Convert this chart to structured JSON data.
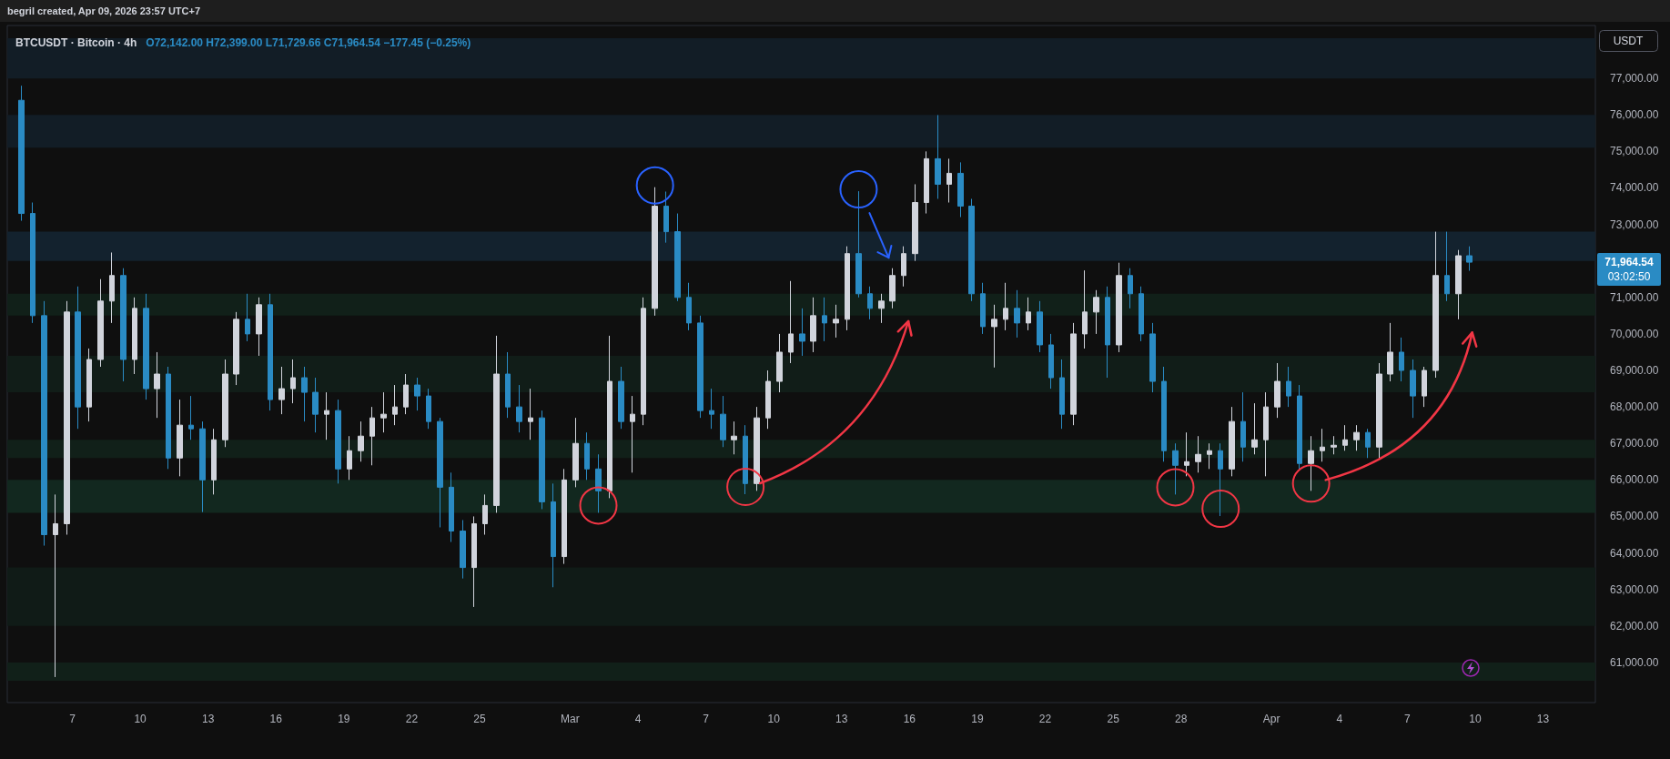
{
  "chart_data": {
    "type": "candlestick",
    "title": "BTCUSDT · Bitcoin · 4h",
    "subtitle": "O72,142.00 H72,399.00 L71,729.66 C71,964.54 −177.45 (−0.25%)",
    "annotations": [
      "begril created, Apr 09, 2026 23:57 UTC+7",
      "USDT",
      "71,964.54",
      "03:02:50"
    ],
    "x": [
      "2026-02-04T18:00",
      "2026-02-05T06:00",
      "2026-02-05T18:00",
      "2026-02-06T06:00",
      "2026-02-06T18:00",
      "2026-02-07T06:00",
      "2026-02-07T18:00",
      "2026-02-08T06:00",
      "2026-02-08T18:00",
      "2026-02-09T06:00",
      "2026-02-09T18:00",
      "2026-02-10T06:00",
      "2026-02-10T18:00",
      "2026-02-11T06:00",
      "2026-02-11T18:00",
      "2026-02-12T06:00",
      "2026-02-12T18:00",
      "2026-02-13T06:00",
      "2026-02-13T18:00",
      "2026-02-14T06:00",
      "2026-02-14T18:00",
      "2026-02-15T06:00",
      "2026-02-15T18:00",
      "2026-02-16T06:00",
      "2026-02-16T18:00",
      "2026-02-17T06:00",
      "2026-02-17T18:00",
      "2026-02-18T06:00",
      "2026-02-18T18:00",
      "2026-02-19T06:00",
      "2026-02-19T18:00",
      "2026-02-20T06:00",
      "2026-02-20T18:00",
      "2026-02-21T06:00",
      "2026-02-21T18:00",
      "2026-02-22T06:00",
      "2026-02-22T18:00",
      "2026-02-23T06:00",
      "2026-02-23T18:00",
      "2026-02-24T06:00",
      "2026-02-24T18:00",
      "2026-02-25T06:00",
      "2026-02-25T18:00",
      "2026-02-26T06:00",
      "2026-02-26T18:00",
      "2026-02-27T06:00",
      "2026-02-27T18:00",
      "2026-02-28T06:00",
      "2026-02-28T18:00",
      "2026-03-01T06:00",
      "2026-03-01T18:00",
      "2026-03-02T06:00",
      "2026-03-02T18:00",
      "2026-03-03T06:00",
      "2026-03-03T18:00",
      "2026-03-04T06:00",
      "2026-03-04T18:00",
      "2026-03-05T06:00",
      "2026-03-05T18:00",
      "2026-03-06T06:00",
      "2026-03-06T18:00",
      "2026-03-07T06:00",
      "2026-03-07T18:00",
      "2026-03-08T06:00",
      "2026-03-08T18:00",
      "2026-03-09T06:00",
      "2026-03-09T18:00",
      "2026-03-10T06:00",
      "2026-03-10T18:00",
      "2026-03-11T06:00",
      "2026-03-11T18:00",
      "2026-03-12T06:00",
      "2026-03-12T18:00",
      "2026-03-13T06:00",
      "2026-03-13T18:00",
      "2026-03-14T06:00",
      "2026-03-14T18:00",
      "2026-03-15T06:00",
      "2026-03-15T18:00",
      "2026-03-16T06:00",
      "2026-03-16T18:00",
      "2026-03-17T06:00",
      "2026-03-17T18:00",
      "2026-03-18T06:00",
      "2026-03-18T18:00",
      "2026-03-19T06:00",
      "2026-03-19T18:00",
      "2026-03-20T06:00",
      "2026-03-20T18:00",
      "2026-03-21T06:00",
      "2026-03-21T18:00",
      "2026-03-22T06:00",
      "2026-03-22T18:00",
      "2026-03-23T06:00",
      "2026-03-23T18:00",
      "2026-03-24T06:00",
      "2026-03-24T18:00",
      "2026-03-25T06:00",
      "2026-03-25T18:00",
      "2026-03-26T06:00",
      "2026-03-26T18:00",
      "2026-03-27T06:00",
      "2026-03-27T18:00",
      "2026-03-28T06:00",
      "2026-03-28T18:00",
      "2026-03-29T06:00",
      "2026-03-29T18:00",
      "2026-03-30T06:00",
      "2026-03-30T18:00",
      "2026-03-31T06:00",
      "2026-03-31T18:00",
      "2026-04-01T06:00",
      "2026-04-01T18:00",
      "2026-04-02T06:00",
      "2026-04-02T18:00",
      "2026-04-03T06:00",
      "2026-04-03T18:00",
      "2026-04-04T06:00",
      "2026-04-04T18:00",
      "2026-04-05T06:00",
      "2026-04-05T18:00",
      "2026-04-06T06:00",
      "2026-04-06T18:00",
      "2026-04-07T06:00",
      "2026-04-07T18:00",
      "2026-04-08T06:00",
      "2026-04-08T18:00",
      "2026-04-09T06:00",
      "2026-04-09T18:00"
    ],
    "ohlc": [
      [
        76400,
        76800,
        73100,
        73300
      ],
      [
        73300,
        73600,
        70300,
        70500
      ],
      [
        70500,
        70900,
        64200,
        64500
      ],
      [
        64500,
        65600,
        60600,
        64800
      ],
      [
        64800,
        70900,
        64500,
        70600
      ],
      [
        70600,
        71300,
        67400,
        68000
      ],
      [
        68000,
        69600,
        67600,
        69300
      ],
      [
        69300,
        71500,
        69100,
        70900
      ],
      [
        70900,
        72230,
        70300,
        71600
      ],
      [
        71600,
        71800,
        68700,
        69300
      ],
      [
        69300,
        71000,
        68900,
        70700
      ],
      [
        70700,
        71100,
        68200,
        68500
      ],
      [
        68500,
        69500,
        67700,
        68900
      ],
      [
        68900,
        69100,
        66300,
        66600
      ],
      [
        66600,
        68200,
        66100,
        67500
      ],
      [
        67500,
        68300,
        67100,
        67400
      ],
      [
        67400,
        67600,
        65120,
        66000
      ],
      [
        66000,
        67400,
        65600,
        67100
      ],
      [
        67100,
        69300,
        66900,
        68900
      ],
      [
        68900,
        70600,
        68600,
        70400
      ],
      [
        70400,
        71100,
        69800,
        70000
      ],
      [
        70000,
        71000,
        69400,
        70800
      ],
      [
        70800,
        71100,
        67900,
        68200
      ],
      [
        68200,
        69100,
        67800,
        68500
      ],
      [
        68500,
        69300,
        68100,
        68800
      ],
      [
        68800,
        69100,
        67600,
        68400
      ],
      [
        68400,
        68800,
        67300,
        67800
      ],
      [
        67800,
        68400,
        67100,
        67900
      ],
      [
        67900,
        68200,
        65900,
        66300
      ],
      [
        66300,
        67200,
        66000,
        66800
      ],
      [
        66800,
        67600,
        66500,
        67200
      ],
      [
        67200,
        68000,
        66400,
        67700
      ],
      [
        67700,
        68400,
        67300,
        67800
      ],
      [
        67800,
        68600,
        67500,
        68000
      ],
      [
        68000,
        68900,
        67800,
        68600
      ],
      [
        68600,
        68800,
        67900,
        68300
      ],
      [
        68300,
        68500,
        67400,
        67600
      ],
      [
        67600,
        67700,
        64700,
        65800
      ],
      [
        65800,
        66200,
        64300,
        64600
      ],
      [
        64600,
        64900,
        63300,
        63600
      ],
      [
        63600,
        65000,
        62520,
        64800
      ],
      [
        64800,
        65600,
        64500,
        65300
      ],
      [
        65300,
        69950,
        65100,
        68900
      ],
      [
        68900,
        69500,
        67700,
        68000
      ],
      [
        68000,
        68600,
        67300,
        67600
      ],
      [
        67600,
        68500,
        67100,
        67700
      ],
      [
        67700,
        67900,
        65200,
        65400
      ],
      [
        65400,
        65900,
        63060,
        63900
      ],
      [
        63900,
        66300,
        63700,
        66000
      ],
      [
        66000,
        67700,
        65800,
        67000
      ],
      [
        67000,
        67300,
        66000,
        66300
      ],
      [
        66300,
        66700,
        65100,
        65700
      ],
      [
        65700,
        69950,
        65500,
        68700
      ],
      [
        68700,
        69100,
        67400,
        67600
      ],
      [
        67600,
        68300,
        66200,
        67800
      ],
      [
        67800,
        71000,
        67500,
        70700
      ],
      [
        70700,
        74020,
        70500,
        73500
      ],
      [
        73500,
        73900,
        72500,
        72800
      ],
      [
        72800,
        73300,
        70900,
        71000
      ],
      [
        71000,
        71400,
        70100,
        70300
      ],
      [
        70300,
        70500,
        67700,
        67900
      ],
      [
        67900,
        68500,
        67400,
        67800
      ],
      [
        67800,
        68300,
        66900,
        67100
      ],
      [
        67100,
        67600,
        66700,
        67200
      ],
      [
        67200,
        67500,
        65610,
        65900
      ],
      [
        65900,
        68000,
        65700,
        67700
      ],
      [
        67700,
        69000,
        67400,
        68700
      ],
      [
        68700,
        70000,
        68400,
        69500
      ],
      [
        69500,
        71450,
        69200,
        70000
      ],
      [
        70000,
        70700,
        69400,
        69800
      ],
      [
        69800,
        71000,
        69500,
        70500
      ],
      [
        70500,
        71000,
        69800,
        70300
      ],
      [
        70300,
        70800,
        69900,
        70400
      ],
      [
        70400,
        72400,
        70100,
        72200
      ],
      [
        72200,
        73910,
        71000,
        71100
      ],
      [
        71100,
        71300,
        70400,
        70700
      ],
      [
        70700,
        71100,
        70300,
        70900
      ],
      [
        70900,
        71800,
        70700,
        71600
      ],
      [
        71600,
        72400,
        71300,
        72200
      ],
      [
        72200,
        74100,
        72000,
        73600
      ],
      [
        73600,
        75000,
        73300,
        74800
      ],
      [
        74800,
        75995,
        73700,
        74100
      ],
      [
        74100,
        74800,
        73600,
        74400
      ],
      [
        74400,
        74700,
        73200,
        73500
      ],
      [
        73500,
        73700,
        70900,
        71100
      ],
      [
        71100,
        71400,
        70000,
        70200
      ],
      [
        70200,
        70800,
        69080,
        70400
      ],
      [
        70400,
        71400,
        70100,
        70700
      ],
      [
        70700,
        71200,
        69900,
        70300
      ],
      [
        70300,
        71000,
        70100,
        70600
      ],
      [
        70600,
        70900,
        69500,
        69700
      ],
      [
        69700,
        70000,
        68500,
        68800
      ],
      [
        68800,
        69300,
        67400,
        67800
      ],
      [
        67800,
        70300,
        67500,
        70000
      ],
      [
        70000,
        71740,
        69600,
        70600
      ],
      [
        70600,
        71200,
        70000,
        71000
      ],
      [
        71000,
        71300,
        68800,
        69700
      ],
      [
        69700,
        71950,
        69500,
        71600
      ],
      [
        71600,
        71800,
        70700,
        71100
      ],
      [
        71100,
        71300,
        69800,
        70000
      ],
      [
        70000,
        70300,
        68400,
        68700
      ],
      [
        68700,
        69100,
        66500,
        66800
      ],
      [
        66800,
        67000,
        65600,
        66400
      ],
      [
        66400,
        67300,
        66100,
        66500
      ],
      [
        66500,
        67200,
        66200,
        66700
      ],
      [
        66700,
        67000,
        66300,
        66800
      ],
      [
        66800,
        67000,
        65010,
        66300
      ],
      [
        66300,
        68000,
        66100,
        67600
      ],
      [
        67600,
        68400,
        66500,
        66900
      ],
      [
        66900,
        68100,
        66700,
        67100
      ],
      [
        67100,
        68400,
        66100,
        68000
      ],
      [
        68000,
        69200,
        67700,
        68700
      ],
      [
        68700,
        69100,
        68000,
        68300
      ],
      [
        68300,
        68600,
        66300,
        66450
      ],
      [
        66450,
        67200,
        65700,
        66800
      ],
      [
        66800,
        67400,
        66500,
        66900
      ],
      [
        66900,
        67200,
        66700,
        66950
      ],
      [
        66950,
        67500,
        66800,
        67100
      ],
      [
        67100,
        67500,
        66800,
        67300
      ],
      [
        67300,
        67400,
        66600,
        66900
      ],
      [
        66900,
        69200,
        66600,
        68900
      ],
      [
        68900,
        70300,
        68700,
        69500
      ],
      [
        69500,
        69900,
        68700,
        69000
      ],
      [
        69000,
        69300,
        67700,
        68300
      ],
      [
        68300,
        69100,
        68000,
        69000
      ],
      [
        69000,
        72800,
        68800,
        71600
      ],
      [
        71600,
        72800,
        70900,
        71100
      ],
      [
        71100,
        72300,
        70400,
        72142
      ],
      [
        72142,
        72399,
        71729.66,
        71964.54
      ]
    ],
    "colors": [
      "#2a8bc4",
      "#2a8bc4",
      "#2a8bc4",
      "#d1d4dc",
      "#d1d4dc",
      "#2a8bc4",
      "#d1d4dc",
      "#d1d4dc",
      "#d1d4dc",
      "#2a8bc4",
      "#d1d4dc",
      "#2a8bc4",
      "#d1d4dc",
      "#2a8bc4",
      "#d1d4dc",
      "#2a8bc4",
      "#2a8bc4",
      "#d1d4dc",
      "#d1d4dc",
      "#d1d4dc",
      "#2a8bc4",
      "#d1d4dc",
      "#2a8bc4",
      "#d1d4dc",
      "#d1d4dc",
      "#2a8bc4",
      "#2a8bc4",
      "#d1d4dc",
      "#2a8bc4",
      "#d1d4dc",
      "#d1d4dc",
      "#d1d4dc",
      "#d1d4dc",
      "#d1d4dc",
      "#d1d4dc",
      "#2a8bc4",
      "#2a8bc4",
      "#2a8bc4",
      "#2a8bc4",
      "#2a8bc4",
      "#d1d4dc",
      "#d1d4dc",
      "#d1d4dc",
      "#2a8bc4",
      "#2a8bc4",
      "#d1d4dc",
      "#2a8bc4",
      "#2a8bc4",
      "#d1d4dc",
      "#d1d4dc",
      "#2a8bc4",
      "#2a8bc4",
      "#d1d4dc",
      "#2a8bc4",
      "#d1d4dc",
      "#d1d4dc",
      "#d1d4dc",
      "#2a8bc4",
      "#2a8bc4",
      "#2a8bc4",
      "#2a8bc4",
      "#2a8bc4",
      "#2a8bc4",
      "#d1d4dc",
      "#2a8bc4",
      "#d1d4dc",
      "#d1d4dc",
      "#d1d4dc",
      "#d1d4dc",
      "#2a8bc4",
      "#d1d4dc",
      "#2a8bc4",
      "#d1d4dc",
      "#d1d4dc",
      "#2a8bc4",
      "#2a8bc4",
      "#d1d4dc",
      "#d1d4dc",
      "#d1d4dc",
      "#d1d4dc",
      "#d1d4dc",
      "#2a8bc4",
      "#d1d4dc",
      "#2a8bc4",
      "#2a8bc4",
      "#2a8bc4",
      "#d1d4dc",
      "#d1d4dc",
      "#2a8bc4",
      "#d1d4dc",
      "#2a8bc4",
      "#2a8bc4",
      "#2a8bc4",
      "#d1d4dc",
      "#d1d4dc",
      "#d1d4dc",
      "#2a8bc4",
      "#d1d4dc",
      "#2a8bc4",
      "#2a8bc4",
      "#2a8bc4",
      "#2a8bc4",
      "#2a8bc4",
      "#d1d4dc",
      "#d1d4dc",
      "#d1d4dc",
      "#2a8bc4",
      "#d1d4dc",
      "#2a8bc4",
      "#d1d4dc",
      "#d1d4dc",
      "#d1d4dc",
      "#2a8bc4",
      "#2a8bc4",
      "#d1d4dc",
      "#d1d4dc",
      "#d1d4dc",
      "#d1d4dc",
      "#d1d4dc",
      "#2a8bc4",
      "#d1d4dc",
      "#d1d4dc",
      "#2a8bc4",
      "#2a8bc4",
      "#d1d4dc",
      "#d1d4dc",
      "#2a8bc4",
      "#d1d4dc",
      "#2a8bc4"
    ],
    "xlim": [
      "2026-02-04T03:00",
      "2026-04-15T07:30"
    ],
    "xticks": [
      {
        "value": "2026-02-07",
        "label": "7"
      },
      {
        "value": "2026-02-10",
        "label": "10"
      },
      {
        "value": "2026-02-13",
        "label": "13"
      },
      {
        "value": "2026-02-16",
        "label": "16"
      },
      {
        "value": "2026-02-19",
        "label": "19"
      },
      {
        "value": "2026-02-22",
        "label": "22"
      },
      {
        "value": "2026-02-25",
        "label": "25"
      },
      {
        "value": "2026-03-01",
        "label": "Mar"
      },
      {
        "value": "2026-03-04",
        "label": "4"
      },
      {
        "value": "2026-03-07",
        "label": "7"
      },
      {
        "value": "2026-03-10",
        "label": "10"
      },
      {
        "value": "2026-03-13",
        "label": "13"
      },
      {
        "value": "2026-03-16",
        "label": "16"
      },
      {
        "value": "2026-03-19",
        "label": "19"
      },
      {
        "value": "2026-03-22",
        "label": "22"
      },
      {
        "value": "2026-03-25",
        "label": "25"
      },
      {
        "value": "2026-03-28",
        "label": "28"
      },
      {
        "value": "2026-04-01",
        "label": "Apr"
      },
      {
        "value": "2026-04-04",
        "label": "4"
      },
      {
        "value": "2026-04-07",
        "label": "7"
      },
      {
        "value": "2026-04-10",
        "label": "10"
      },
      {
        "value": "2026-04-13",
        "label": "13"
      }
    ],
    "ylim": [
      59900,
      78450
    ],
    "yticks": [
      {
        "value": 61000,
        "label": "61,000.00"
      },
      {
        "value": 62000,
        "label": "62,000.00"
      },
      {
        "value": 63000,
        "label": "63,000.00"
      },
      {
        "value": 64000,
        "label": "64,000.00"
      },
      {
        "value": 65000,
        "label": "65,000.00"
      },
      {
        "value": 66000,
        "label": "66,000.00"
      },
      {
        "value": 67000,
        "label": "67,000.00"
      },
      {
        "value": 68000,
        "label": "68,000.00"
      },
      {
        "value": 69000,
        "label": "69,000.00"
      },
      {
        "value": 70000,
        "label": "70,000.00"
      },
      {
        "value": 71000,
        "label": "71,000.00"
      },
      {
        "value": 73000,
        "label": "73,000.00"
      },
      {
        "value": 74000,
        "label": "74,000.00"
      },
      {
        "value": 75000,
        "label": "75,000.00"
      },
      {
        "value": 76000,
        "label": "76,000.00"
      },
      {
        "value": 77000,
        "label": "77,000.00"
      }
    ],
    "bands": [
      {
        "axis": "y",
        "from": 77000,
        "to": 78100,
        "color": "#121d26"
      },
      {
        "axis": "y",
        "from": 75100,
        "to": 76000,
        "color": "#121d26"
      },
      {
        "axis": "y",
        "from": 72000,
        "to": 72800,
        "color": "#13222e"
      },
      {
        "axis": "y",
        "from": 70500,
        "to": 71100,
        "color": "#112019"
      },
      {
        "axis": "y",
        "from": 68400,
        "to": 69400,
        "color": "#111d18"
      },
      {
        "axis": "y",
        "from": 66600,
        "to": 67100,
        "color": "#112019"
      },
      {
        "axis": "y",
        "from": 65100,
        "to": 66000,
        "color": "#12281f"
      },
      {
        "axis": "y",
        "from": 62000,
        "to": 63600,
        "color": "#101b17"
      },
      {
        "axis": "y",
        "from": 60500,
        "to": 61000,
        "color": "#112019"
      }
    ]
  }
}
